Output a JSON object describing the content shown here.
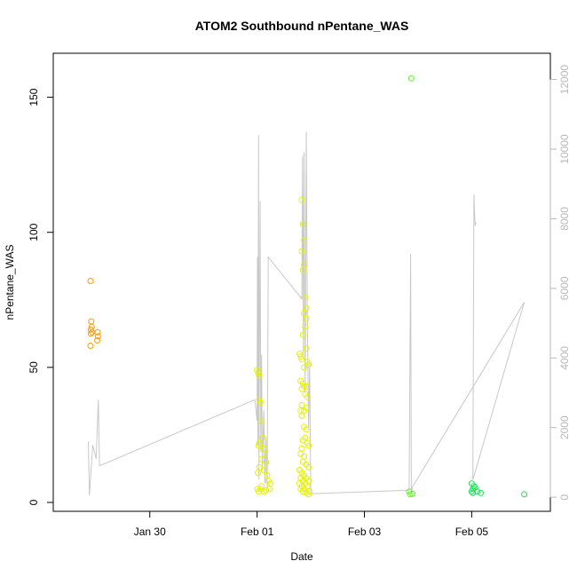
{
  "chart_data": {
    "type": "scatter",
    "title": "ATOM2 Southbound nPentane_WAS",
    "xlabel": "Date",
    "ylabel": "nPentane_WAS",
    "y_left": {
      "range": [
        0,
        163
      ],
      "ticks": [
        0,
        50,
        100,
        150
      ]
    },
    "y_right": {
      "range": [
        -150,
        12500
      ],
      "ticks": [
        0,
        2000,
        4000,
        6000,
        8000,
        10000,
        12000
      ],
      "color": "#b8b8b8"
    },
    "x_range": [
      "Jan 28 08:00",
      "Feb 06 08:00"
    ],
    "x_ticks": [
      {
        "label": "Jan 30",
        "date": "Jan 30 00:00"
      },
      {
        "label": "Feb 01",
        "date": "Feb 01 00:00"
      },
      {
        "label": "Feb 03",
        "date": "Feb 03 00:00"
      },
      {
        "label": "Feb 05",
        "date": "Feb 05 00:00"
      }
    ],
    "series": [
      {
        "color": "#ff9900",
        "marker": "open-circle",
        "points": [
          [
            "Jan 28 21:30",
            82
          ],
          [
            "Jan 28 21:50",
            67
          ],
          [
            "Jan 28 22:00",
            65
          ],
          [
            "Jan 28 21:40",
            64
          ],
          [
            "Jan 28 22:10",
            63
          ],
          [
            "Jan 28 21:40",
            62.5
          ],
          [
            "Jan 28 21:30",
            58
          ],
          [
            "Jan 29 00:40",
            63
          ],
          [
            "Jan 29 00:50",
            61.5
          ],
          [
            "Jan 29 00:30",
            60
          ]
        ]
      },
      {
        "color": "#e5f200",
        "marker": "open-circle",
        "points": [
          [
            "Feb 01 00:00",
            49
          ],
          [
            "Feb 01 00:30",
            48
          ],
          [
            "Feb 01 00:50",
            47
          ],
          [
            "Feb 01 01:00",
            38
          ],
          [
            "Feb 01 01:30",
            37
          ],
          [
            "Feb 01 02:00",
            30
          ],
          [
            "Feb 01 02:30",
            24
          ],
          [
            "Feb 01 01:00",
            22
          ],
          [
            "Feb 01 00:40",
            21
          ],
          [
            "Feb 01 03:00",
            20
          ],
          [
            "Feb 01 03:30",
            18
          ],
          [
            "Feb 01 02:00",
            16
          ],
          [
            "Feb 01 04:00",
            15
          ],
          [
            "Feb 01 01:00",
            13
          ],
          [
            "Feb 01 03:00",
            12
          ],
          [
            "Feb 01 00:20",
            11
          ],
          [
            "Feb 01 04:30",
            10
          ],
          [
            "Feb 01 05:00",
            8
          ],
          [
            "Feb 01 06:00",
            7
          ],
          [
            "Feb 01 02:00",
            6
          ],
          [
            "Feb 01 00:10",
            5
          ],
          [
            "Feb 01 01:30",
            5
          ],
          [
            "Feb 01 00:40",
            4
          ],
          [
            "Feb 01 03:00",
            4
          ],
          [
            "Feb 01 04:00",
            4.5
          ],
          [
            "Feb 01 05:30",
            5
          ],
          [
            "Feb 01 20:00",
            112
          ],
          [
            "Feb 01 20:30",
            103
          ],
          [
            "Feb 01 21:00",
            97
          ],
          [
            "Feb 01 20:00",
            93
          ],
          [
            "Feb 01 21:00",
            88
          ],
          [
            "Feb 01 20:30",
            86
          ],
          [
            "Feb 01 21:30",
            76
          ],
          [
            "Feb 01 22:00",
            72
          ],
          [
            "Feb 01 21:00",
            70
          ],
          [
            "Feb 01 22:00",
            68
          ],
          [
            "Feb 01 21:30",
            65
          ],
          [
            "Feb 01 20:30",
            62
          ],
          [
            "Feb 01 22:00",
            57
          ],
          [
            "Feb 01 19:00",
            55
          ],
          [
            "Feb 01 19:30",
            54
          ],
          [
            "Feb 01 20:00",
            53
          ],
          [
            "Feb 01 22:30",
            52
          ],
          [
            "Feb 01 23:00",
            51
          ],
          [
            "Feb 01 21:00",
            50
          ],
          [
            "Feb 01 19:30",
            45
          ],
          [
            "Feb 01 20:30",
            44
          ],
          [
            "Feb 01 22:00",
            43
          ],
          [
            "Feb 01 21:00",
            43
          ],
          [
            "Feb 01 20:00",
            42
          ],
          [
            "Feb 01 21:30",
            40
          ],
          [
            "Feb 01 22:30",
            39
          ],
          [
            "Feb 01 20:00",
            36
          ],
          [
            "Feb 01 19:30",
            34
          ],
          [
            "Feb 01 21:00",
            34
          ],
          [
            "Feb 01 22:00",
            35
          ],
          [
            "Feb 01 20:00",
            32
          ],
          [
            "Feb 01 21:00",
            28
          ],
          [
            "Feb 01 22:00",
            27
          ],
          [
            "Feb 01 21:30",
            24
          ],
          [
            "Feb 01 20:30",
            23
          ],
          [
            "Feb 01 22:30",
            22
          ],
          [
            "Feb 01 23:00",
            21
          ],
          [
            "Feb 01 20:00",
            20
          ],
          [
            "Feb 01 19:30",
            18
          ],
          [
            "Feb 01 21:00",
            17
          ],
          [
            "Feb 01 20:30",
            15
          ],
          [
            "Feb 01 22:00",
            14
          ],
          [
            "Feb 01 23:00",
            13
          ],
          [
            "Feb 01 19:00",
            12
          ],
          [
            "Feb 01 20:00",
            11
          ],
          [
            "Feb 01 21:00",
            10
          ],
          [
            "Feb 01 19:30",
            9
          ],
          [
            "Feb 01 22:00",
            9
          ],
          [
            "Feb 01 20:30",
            8
          ],
          [
            "Feb 01 23:00",
            8
          ],
          [
            "Feb 01 19:00",
            7
          ],
          [
            "Feb 01 21:30",
            7
          ],
          [
            "Feb 01 20:00",
            6
          ],
          [
            "Feb 01 22:30",
            6
          ],
          [
            "Feb 01 21:00",
            5
          ],
          [
            "Feb 01 19:30",
            5
          ],
          [
            "Feb 01 23:30",
            4
          ],
          [
            "Feb 01 20:30",
            4
          ],
          [
            "Feb 01 22:00",
            3.5
          ],
          [
            "Feb 01 23:00",
            3
          ]
        ]
      },
      {
        "color": "#66ee33",
        "marker": "open-circle",
        "points": [
          [
            "Feb 03 21:00",
            157
          ],
          [
            "Feb 03 20:00",
            4
          ],
          [
            "Feb 03 21:30",
            3.2
          ],
          [
            "Feb 03 20:30",
            3
          ]
        ]
      },
      {
        "color": "#22dd55",
        "marker": "open-circle",
        "points": [
          [
            "Feb 05 00:00",
            7
          ],
          [
            "Feb 05 01:00",
            6
          ],
          [
            "Feb 05 00:30",
            5
          ],
          [
            "Feb 05 01:30",
            5.5
          ],
          [
            "Feb 05 00:00",
            4
          ],
          [
            "Feb 05 00:30",
            3.5
          ],
          [
            "Feb 05 02:30",
            4
          ],
          [
            "Feb 05 04:00",
            3.5
          ],
          [
            "Feb 05 23:30",
            3
          ]
        ]
      }
    ],
    "line": {
      "axis": "right",
      "color": "#c8c8c8",
      "points": [
        [
          "Jan 28 20:30",
          1600
        ],
        [
          "Jan 28 21:00",
          50
        ],
        [
          "Jan 28 22:30",
          1500
        ],
        [
          "Jan 29 00:00",
          1100
        ],
        [
          "Jan 29 01:00",
          2800
        ],
        [
          "Jan 29 01:30",
          900
        ],
        [
          "Jan 31 23:00",
          2800
        ],
        [
          "Feb 01 00:00",
          2200
        ],
        [
          "Feb 01 00:10",
          6900
        ],
        [
          "Feb 01 00:20",
          1500
        ],
        [
          "Feb 01 00:40",
          10400
        ],
        [
          "Feb 01 00:50",
          500
        ],
        [
          "Feb 01 01:00",
          3300
        ],
        [
          "Feb 01 01:20",
          8500
        ],
        [
          "Feb 01 01:40",
          1300
        ],
        [
          "Feb 01 02:00",
          4100
        ],
        [
          "Feb 01 02:20",
          800
        ],
        [
          "Feb 01 03:00",
          2500
        ],
        [
          "Feb 01 03:30",
          400
        ],
        [
          "Feb 01 04:00",
          1700
        ],
        [
          "Feb 01 04:30",
          300
        ],
        [
          "Feb 01 05:00",
          6900
        ],
        [
          "Feb 01 20:00",
          5700
        ],
        [
          "Feb 01 20:20",
          9800
        ],
        [
          "Feb 01 20:40",
          4000
        ],
        [
          "Feb 01 21:00",
          9900
        ],
        [
          "Feb 01 21:30",
          3000
        ],
        [
          "Feb 01 22:00",
          10500
        ],
        [
          "Feb 01 22:30",
          5000
        ],
        [
          "Feb 01 23:00",
          2000
        ],
        [
          "Feb 01 23:30",
          3800
        ],
        [
          "Feb 02 00:00",
          100
        ],
        [
          "Feb 03 20:00",
          200
        ],
        [
          "Feb 03 20:40",
          7000
        ],
        [
          "Feb 03 21:00",
          150
        ],
        [
          "Feb 03 21:30",
          300
        ],
        [
          "Feb 05 23:30",
          5600
        ],
        [
          "Feb 05 00:30",
          500
        ],
        [
          "Feb 05 01:00",
          8700
        ],
        [
          "Feb 05 01:30",
          7800
        ],
        [
          "Feb 05 02:00",
          7900
        ]
      ]
    }
  }
}
